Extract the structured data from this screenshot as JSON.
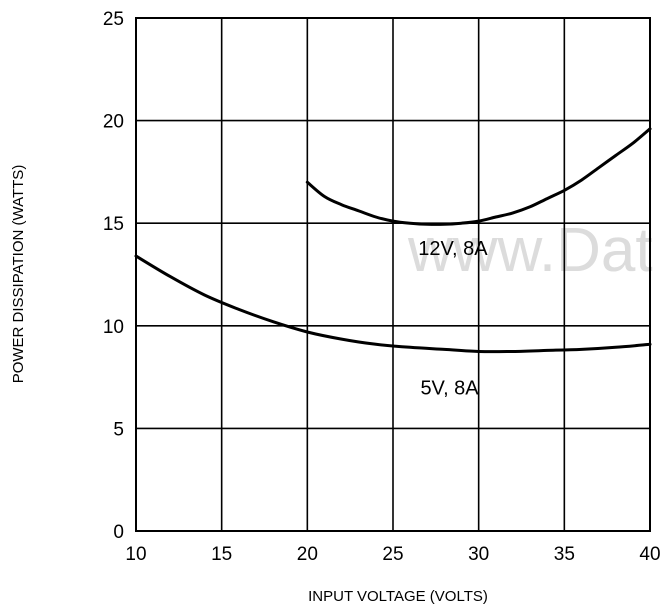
{
  "chart_data": {
    "type": "line",
    "title": "",
    "xlabel": "INPUT VOLTAGE (VOLTS)",
    "ylabel": "POWER DISSIPATION (WATTS)",
    "xlim": [
      10,
      40
    ],
    "ylim": [
      0,
      25
    ],
    "x_ticks": [
      10,
      15,
      20,
      25,
      30,
      35,
      40
    ],
    "y_ticks": [
      0,
      5,
      10,
      15,
      20,
      25
    ],
    "x_tick_labels": [
      "10",
      "15",
      "20",
      "25",
      "30",
      "35",
      "40"
    ],
    "y_tick_labels": [
      "0",
      "5",
      "10",
      "15",
      "20",
      "25"
    ],
    "grid": true,
    "series": [
      {
        "name": "12V, 8A",
        "x": [
          20,
          21,
          22,
          23,
          24,
          25,
          26,
          27,
          28,
          29,
          30,
          31,
          32,
          33,
          34,
          35,
          36,
          37,
          38,
          39,
          40
        ],
        "y": [
          17.0,
          16.3,
          15.9,
          15.6,
          15.3,
          15.1,
          15.0,
          14.95,
          14.95,
          15.0,
          15.1,
          15.3,
          15.5,
          15.8,
          16.2,
          16.6,
          17.1,
          17.7,
          18.3,
          18.9,
          19.6
        ]
      },
      {
        "name": "5V, 8A",
        "x": [
          10,
          12,
          14,
          16,
          18,
          20,
          22,
          24,
          26,
          28,
          30,
          32,
          34,
          36,
          38,
          40
        ],
        "y": [
          13.4,
          12.4,
          11.5,
          10.8,
          10.2,
          9.7,
          9.35,
          9.1,
          8.95,
          8.85,
          8.75,
          8.75,
          8.8,
          8.85,
          8.95,
          9.1
        ]
      }
    ],
    "annotations": [
      {
        "text": "12V, 8A",
        "x": 28.5,
        "y": 13.8
      },
      {
        "text": "5V, 8A",
        "x": 28.3,
        "y": 7.0
      }
    ],
    "watermark": "www.Dat"
  }
}
